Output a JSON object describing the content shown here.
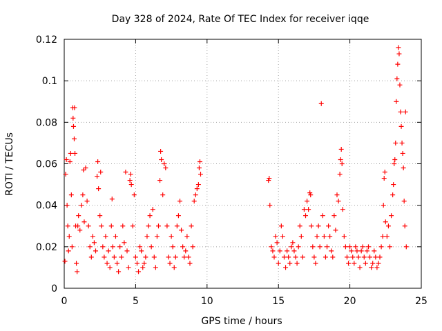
{
  "chart_data": {
    "type": "scatter",
    "title": "Day 328 of 2024, Rate Of TEC Index for receiver iqqe",
    "xlabel": "GPS time / hours",
    "ylabel": "ROTI / TECUs",
    "xlim": [
      0,
      25
    ],
    "ylim": [
      0,
      0.12
    ],
    "xticks": [
      0,
      5,
      10,
      15,
      20,
      25
    ],
    "yticks": [
      0,
      0.02,
      0.04,
      0.06,
      0.08,
      0.1,
      0.12
    ],
    "xtick_labels": [
      "0",
      "5",
      "10",
      "15",
      "20",
      "25"
    ],
    "ytick_labels": [
      "0",
      "0.02",
      "0.04",
      "0.06",
      "0.08",
      "0.1",
      "0.12"
    ],
    "grid": true,
    "marker": "+",
    "color": "#ff0000",
    "series": [
      {
        "name": "ROTI",
        "points": [
          [
            0.05,
            0.013
          ],
          [
            0.1,
            0.055
          ],
          [
            0.15,
            0.062
          ],
          [
            0.2,
            0.04
          ],
          [
            0.25,
            0.03
          ],
          [
            0.3,
            0.018
          ],
          [
            0.35,
            0.025
          ],
          [
            0.4,
            0.061
          ],
          [
            0.45,
            0.065
          ],
          [
            0.5,
            0.045
          ],
          [
            0.55,
            0.02
          ],
          [
            0.6,
            0.087
          ],
          [
            0.62,
            0.082
          ],
          [
            0.65,
            0.078
          ],
          [
            0.7,
            0.072
          ],
          [
            0.72,
            0.087
          ],
          [
            0.75,
            0.065
          ],
          [
            0.8,
            0.03
          ],
          [
            0.85,
            0.012
          ],
          [
            0.9,
            0.008
          ],
          [
            0.95,
            0.03
          ],
          [
            1.0,
            0.035
          ],
          [
            1.1,
            0.028
          ],
          [
            1.2,
            0.04
          ],
          [
            1.3,
            0.045
          ],
          [
            1.35,
            0.057
          ],
          [
            1.4,
            0.032
          ],
          [
            1.5,
            0.058
          ],
          [
            1.6,
            0.042
          ],
          [
            1.7,
            0.03
          ],
          [
            1.8,
            0.02
          ],
          [
            1.9,
            0.015
          ],
          [
            2.0,
            0.025
          ],
          [
            2.1,
            0.022
          ],
          [
            2.2,
            0.018
          ],
          [
            2.3,
            0.054
          ],
          [
            2.35,
            0.061
          ],
          [
            2.4,
            0.048
          ],
          [
            2.5,
            0.035
          ],
          [
            2.55,
            0.056
          ],
          [
            2.6,
            0.03
          ],
          [
            2.7,
            0.02
          ],
          [
            2.8,
            0.015
          ],
          [
            2.9,
            0.025
          ],
          [
            3.0,
            0.012
          ],
          [
            3.1,
            0.018
          ],
          [
            3.2,
            0.01
          ],
          [
            3.3,
            0.03
          ],
          [
            3.35,
            0.043
          ],
          [
            3.4,
            0.02
          ],
          [
            3.5,
            0.015
          ],
          [
            3.6,
            0.025
          ],
          [
            3.7,
            0.012
          ],
          [
            3.8,
            0.008
          ],
          [
            3.9,
            0.02
          ],
          [
            4.0,
            0.015
          ],
          [
            4.1,
            0.03
          ],
          [
            4.2,
            0.022
          ],
          [
            4.3,
            0.056
          ],
          [
            4.4,
            0.018
          ],
          [
            4.5,
            0.01
          ],
          [
            4.6,
            0.052
          ],
          [
            4.65,
            0.055
          ],
          [
            4.7,
            0.05
          ],
          [
            4.8,
            0.03
          ],
          [
            4.9,
            0.045
          ],
          [
            5.0,
            0.015
          ],
          [
            5.1,
            0.012
          ],
          [
            5.2,
            0.008
          ],
          [
            5.3,
            0.02
          ],
          [
            5.4,
            0.018
          ],
          [
            5.5,
            0.01
          ],
          [
            5.6,
            0.012
          ],
          [
            5.7,
            0.015
          ],
          [
            5.8,
            0.025
          ],
          [
            5.9,
            0.03
          ],
          [
            6.0,
            0.035
          ],
          [
            6.1,
            0.02
          ],
          [
            6.2,
            0.038
          ],
          [
            6.3,
            0.015
          ],
          [
            6.4,
            0.01
          ],
          [
            6.5,
            0.025
          ],
          [
            6.6,
            0.03
          ],
          [
            6.7,
            0.052
          ],
          [
            6.75,
            0.066
          ],
          [
            6.8,
            0.062
          ],
          [
            6.9,
            0.045
          ],
          [
            7.0,
            0.06
          ],
          [
            7.1,
            0.058
          ],
          [
            7.2,
            0.03
          ],
          [
            7.3,
            0.015
          ],
          [
            7.4,
            0.012
          ],
          [
            7.5,
            0.025
          ],
          [
            7.6,
            0.02
          ],
          [
            7.7,
            0.01
          ],
          [
            7.8,
            0.015
          ],
          [
            7.9,
            0.03
          ],
          [
            8.0,
            0.035
          ],
          [
            8.1,
            0.042
          ],
          [
            8.2,
            0.028
          ],
          [
            8.3,
            0.02
          ],
          [
            8.4,
            0.015
          ],
          [
            8.5,
            0.018
          ],
          [
            8.6,
            0.025
          ],
          [
            8.7,
            0.015
          ],
          [
            8.8,
            0.012
          ],
          [
            8.9,
            0.03
          ],
          [
            9.0,
            0.02
          ],
          [
            9.1,
            0.042
          ],
          [
            9.2,
            0.045
          ],
          [
            9.3,
            0.048
          ],
          [
            9.4,
            0.05
          ],
          [
            9.45,
            0.058
          ],
          [
            9.5,
            0.061
          ],
          [
            9.55,
            0.055
          ],
          [
            14.3,
            0.052
          ],
          [
            14.35,
            0.053
          ],
          [
            14.4,
            0.04
          ],
          [
            14.5,
            0.02
          ],
          [
            14.6,
            0.018
          ],
          [
            14.7,
            0.015
          ],
          [
            14.8,
            0.025
          ],
          [
            14.9,
            0.022
          ],
          [
            15.0,
            0.012
          ],
          [
            15.1,
            0.018
          ],
          [
            15.2,
            0.03
          ],
          [
            15.3,
            0.025
          ],
          [
            15.4,
            0.015
          ],
          [
            15.5,
            0.01
          ],
          [
            15.6,
            0.018
          ],
          [
            15.7,
            0.015
          ],
          [
            15.8,
            0.012
          ],
          [
            15.9,
            0.02
          ],
          [
            16.0,
            0.022
          ],
          [
            16.1,
            0.018
          ],
          [
            16.2,
            0.015
          ],
          [
            16.3,
            0.012
          ],
          [
            16.4,
            0.02
          ],
          [
            16.5,
            0.03
          ],
          [
            16.6,
            0.025
          ],
          [
            16.7,
            0.015
          ],
          [
            16.8,
            0.038
          ],
          [
            16.9,
            0.035
          ],
          [
            17.0,
            0.042
          ],
          [
            17.1,
            0.038
          ],
          [
            17.2,
            0.046
          ],
          [
            17.25,
            0.045
          ],
          [
            17.3,
            0.03
          ],
          [
            17.4,
            0.02
          ],
          [
            17.5,
            0.015
          ],
          [
            17.6,
            0.012
          ],
          [
            17.7,
            0.025
          ],
          [
            17.8,
            0.03
          ],
          [
            17.9,
            0.02
          ],
          [
            18.0,
            0.089
          ],
          [
            18.1,
            0.035
          ],
          [
            18.2,
            0.025
          ],
          [
            18.3,
            0.015
          ],
          [
            18.4,
            0.02
          ],
          [
            18.5,
            0.03
          ],
          [
            18.6,
            0.025
          ],
          [
            18.7,
            0.018
          ],
          [
            18.8,
            0.015
          ],
          [
            18.9,
            0.035
          ],
          [
            19.0,
            0.028
          ],
          [
            19.1,
            0.045
          ],
          [
            19.2,
            0.042
          ],
          [
            19.3,
            0.055
          ],
          [
            19.35,
            0.062
          ],
          [
            19.4,
            0.067
          ],
          [
            19.45,
            0.06
          ],
          [
            19.5,
            0.038
          ],
          [
            19.6,
            0.025
          ],
          [
            19.7,
            0.02
          ],
          [
            19.8,
            0.015
          ],
          [
            19.9,
            0.012
          ],
          [
            20.0,
            0.02
          ],
          [
            20.1,
            0.018
          ],
          [
            20.2,
            0.015
          ],
          [
            20.3,
            0.012
          ],
          [
            20.4,
            0.02
          ],
          [
            20.5,
            0.018
          ],
          [
            20.6,
            0.015
          ],
          [
            20.7,
            0.01
          ],
          [
            20.8,
            0.018
          ],
          [
            20.9,
            0.02
          ],
          [
            21.0,
            0.015
          ],
          [
            21.1,
            0.012
          ],
          [
            21.2,
            0.018
          ],
          [
            21.3,
            0.02
          ],
          [
            21.4,
            0.015
          ],
          [
            21.5,
            0.01
          ],
          [
            21.6,
            0.012
          ],
          [
            21.7,
            0.018
          ],
          [
            21.8,
            0.015
          ],
          [
            21.9,
            0.01
          ],
          [
            22.0,
            0.012
          ],
          [
            22.1,
            0.015
          ],
          [
            22.2,
            0.02
          ],
          [
            22.3,
            0.025
          ],
          [
            22.35,
            0.04
          ],
          [
            22.4,
            0.053
          ],
          [
            22.45,
            0.056
          ],
          [
            22.5,
            0.032
          ],
          [
            22.6,
            0.025
          ],
          [
            22.7,
            0.03
          ],
          [
            22.8,
            0.02
          ],
          [
            22.9,
            0.035
          ],
          [
            23.0,
            0.045
          ],
          [
            23.05,
            0.05
          ],
          [
            23.1,
            0.06
          ],
          [
            23.15,
            0.062
          ],
          [
            23.2,
            0.07
          ],
          [
            23.25,
            0.09
          ],
          [
            23.3,
            0.101
          ],
          [
            23.35,
            0.108
          ],
          [
            23.4,
            0.116
          ],
          [
            23.45,
            0.113
          ],
          [
            23.5,
            0.098
          ],
          [
            23.55,
            0.085
          ],
          [
            23.6,
            0.078
          ],
          [
            23.65,
            0.07
          ],
          [
            23.7,
            0.065
          ],
          [
            23.75,
            0.058
          ],
          [
            23.8,
            0.042
          ],
          [
            23.85,
            0.03
          ],
          [
            23.9,
            0.085
          ],
          [
            23.95,
            0.02
          ]
        ]
      }
    ]
  }
}
